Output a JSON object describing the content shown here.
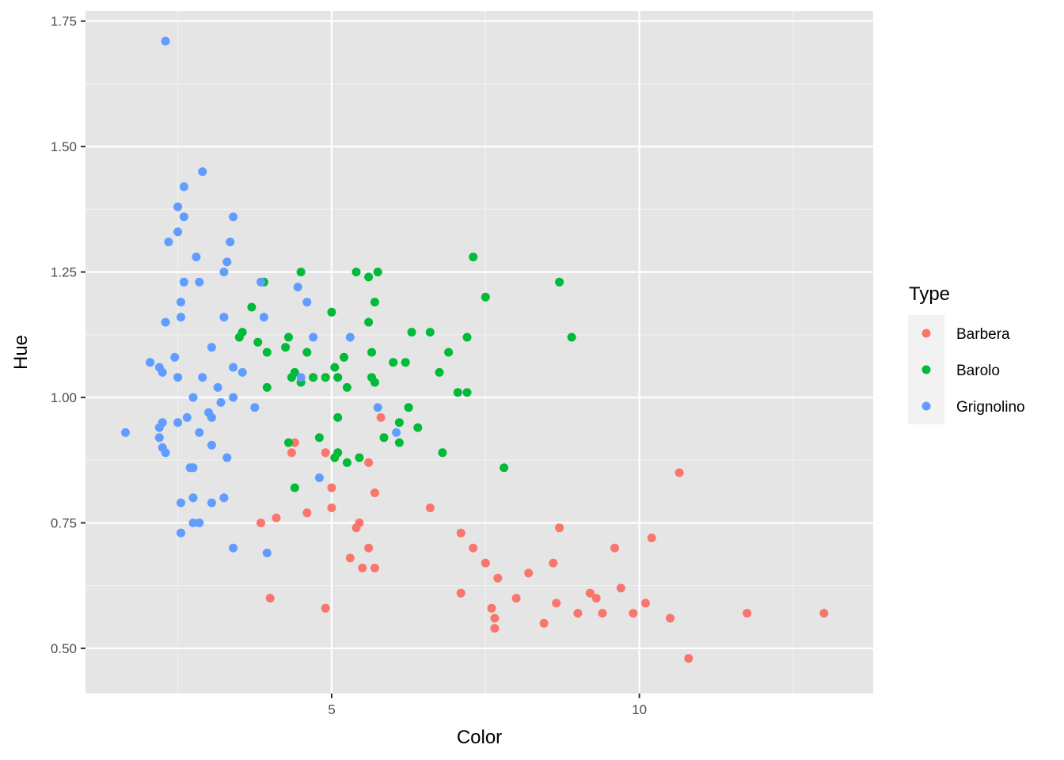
{
  "colors": {
    "panel": "#e5e5e5",
    "grid_major": "#ffffff",
    "tick": "#333333",
    "Barbera": "#F8766D",
    "Barolo": "#00BA38",
    "Grignolino": "#619CFF"
  },
  "chart_data": {
    "type": "scatter",
    "xlabel": "Color",
    "ylabel": "Hue",
    "xlim": [
      1.0,
      13.8
    ],
    "ylim": [
      0.41,
      1.77
    ],
    "x_ticks": [
      5,
      10
    ],
    "x_tick_labels": [
      "5",
      "10"
    ],
    "y_ticks": [
      0.5,
      0.75,
      1.0,
      1.25,
      1.5,
      1.75
    ],
    "y_tick_labels": [
      "0.50",
      "0.75",
      "1.00",
      "1.25",
      "1.50",
      "1.75"
    ],
    "grid": true,
    "legend": {
      "title": "Type",
      "position": "right"
    },
    "series": [
      {
        "name": "Barbera",
        "points": [
          [
            5.8,
            0.96
          ],
          [
            4.4,
            0.91
          ],
          [
            4.35,
            0.89
          ],
          [
            4.9,
            0.89
          ],
          [
            5,
            0.82
          ],
          [
            5.6,
            0.87
          ],
          [
            5.7,
            0.81
          ],
          [
            6.6,
            0.78
          ],
          [
            5,
            0.78
          ],
          [
            4.6,
            0.77
          ],
          [
            4.1,
            0.76
          ],
          [
            3.85,
            0.75
          ],
          [
            5.45,
            0.75
          ],
          [
            5.4,
            0.74
          ],
          [
            8.7,
            0.74
          ],
          [
            7.1,
            0.73
          ],
          [
            10.2,
            0.72
          ],
          [
            7.3,
            0.7
          ],
          [
            5.6,
            0.7
          ],
          [
            9.6,
            0.7
          ],
          [
            5.3,
            0.68
          ],
          [
            7.5,
            0.67
          ],
          [
            8.6,
            0.67
          ],
          [
            5.5,
            0.66
          ],
          [
            5.7,
            0.66
          ],
          [
            8.2,
            0.65
          ],
          [
            7.7,
            0.64
          ],
          [
            9.7,
            0.62
          ],
          [
            7.1,
            0.61
          ],
          [
            9.2,
            0.61
          ],
          [
            4,
            0.6
          ],
          [
            8,
            0.6
          ],
          [
            9.3,
            0.6
          ],
          [
            8.65,
            0.59
          ],
          [
            10.1,
            0.59
          ],
          [
            4.9,
            0.58
          ],
          [
            7.6,
            0.58
          ],
          [
            9,
            0.57
          ],
          [
            9.4,
            0.57
          ],
          [
            9.9,
            0.57
          ],
          [
            11.75,
            0.57
          ],
          [
            13,
            0.57
          ],
          [
            7.65,
            0.56
          ],
          [
            10.5,
            0.56
          ],
          [
            7.65,
            0.54
          ],
          [
            8.45,
            0.55
          ],
          [
            10.65,
            0.85
          ],
          [
            10.8,
            0.48
          ]
        ]
      },
      {
        "name": "Barolo",
        "points": [
          [
            7.3,
            1.28
          ],
          [
            5.4,
            1.25
          ],
          [
            5.75,
            1.25
          ],
          [
            4.5,
            1.25
          ],
          [
            5.6,
            1.24
          ],
          [
            8.7,
            1.23
          ],
          [
            3.9,
            1.23
          ],
          [
            7.5,
            1.2
          ],
          [
            5.7,
            1.19
          ],
          [
            3.7,
            1.18
          ],
          [
            5,
            1.17
          ],
          [
            3.55,
            1.13
          ],
          [
            6.3,
            1.13
          ],
          [
            6.6,
            1.13
          ],
          [
            3.5,
            1.12
          ],
          [
            4.3,
            1.12
          ],
          [
            7.2,
            1.12
          ],
          [
            8.9,
            1.12
          ],
          [
            3.8,
            1.11
          ],
          [
            5.6,
            1.15
          ],
          [
            4.25,
            1.1
          ],
          [
            3.95,
            1.09
          ],
          [
            4.6,
            1.09
          ],
          [
            5.65,
            1.09
          ],
          [
            6.9,
            1.09
          ],
          [
            5.2,
            1.08
          ],
          [
            6,
            1.07
          ],
          [
            6.2,
            1.07
          ],
          [
            5.05,
            1.06
          ],
          [
            4.4,
            1.05
          ],
          [
            6.75,
            1.05
          ],
          [
            4.35,
            1.04
          ],
          [
            4.7,
            1.04
          ],
          [
            4.9,
            1.04
          ],
          [
            5.1,
            1.04
          ],
          [
            5.65,
            1.04
          ],
          [
            4.5,
            1.03
          ],
          [
            5.7,
            1.03
          ],
          [
            3.95,
            1.02
          ],
          [
            5.25,
            1.02
          ],
          [
            7.05,
            1.01
          ],
          [
            7.2,
            1.01
          ],
          [
            6.25,
            0.98
          ],
          [
            5.1,
            0.96
          ],
          [
            6.1,
            0.95
          ],
          [
            6.4,
            0.94
          ],
          [
            4.8,
            0.92
          ],
          [
            5.85,
            0.92
          ],
          [
            4.3,
            0.91
          ],
          [
            6.1,
            0.91
          ],
          [
            5.1,
            0.89
          ],
          [
            6.8,
            0.89
          ],
          [
            5.05,
            0.88
          ],
          [
            5.45,
            0.88
          ],
          [
            5.25,
            0.87
          ],
          [
            7.8,
            0.86
          ],
          [
            4.4,
            0.82
          ]
        ]
      },
      {
        "name": "Grignolino",
        "points": [
          [
            2.3,
            1.71
          ],
          [
            2.9,
            1.45
          ],
          [
            2.6,
            1.42
          ],
          [
            2.5,
            1.38
          ],
          [
            2.6,
            1.36
          ],
          [
            3.4,
            1.36
          ],
          [
            2.5,
            1.33
          ],
          [
            2.35,
            1.31
          ],
          [
            3.35,
            1.31
          ],
          [
            2.8,
            1.28
          ],
          [
            3.3,
            1.27
          ],
          [
            3.25,
            1.25
          ],
          [
            2.6,
            1.23
          ],
          [
            2.85,
            1.23
          ],
          [
            3.85,
            1.23
          ],
          [
            4.45,
            1.22
          ],
          [
            2.55,
            1.19
          ],
          [
            4.6,
            1.19
          ],
          [
            2.55,
            1.16
          ],
          [
            3.25,
            1.16
          ],
          [
            3.9,
            1.16
          ],
          [
            2.3,
            1.15
          ],
          [
            4.7,
            1.12
          ],
          [
            5.3,
            1.12
          ],
          [
            3.05,
            1.1
          ],
          [
            2.45,
            1.08
          ],
          [
            2.05,
            1.07
          ],
          [
            2.2,
            1.06
          ],
          [
            3.4,
            1.06
          ],
          [
            2.25,
            1.05
          ],
          [
            3.55,
            1.05
          ],
          [
            2.5,
            1.04
          ],
          [
            2.9,
            1.04
          ],
          [
            4.5,
            1.04
          ],
          [
            3.15,
            1.02
          ],
          [
            2.75,
            1.0
          ],
          [
            3.4,
            1.0
          ],
          [
            3.2,
            0.99
          ],
          [
            3.75,
            0.98
          ],
          [
            5.75,
            0.98
          ],
          [
            3,
            0.97
          ],
          [
            2.65,
            0.96
          ],
          [
            3.05,
            0.96
          ],
          [
            2.25,
            0.95
          ],
          [
            2.5,
            0.95
          ],
          [
            2.2,
            0.94
          ],
          [
            1.65,
            0.93
          ],
          [
            2.85,
            0.93
          ],
          [
            6.05,
            0.93
          ],
          [
            2.2,
            0.92
          ],
          [
            3.05,
            0.905
          ],
          [
            2.25,
            0.9
          ],
          [
            2.3,
            0.89
          ],
          [
            3.3,
            0.88
          ],
          [
            2.7,
            0.86
          ],
          [
            2.75,
            0.86
          ],
          [
            4.8,
            0.84
          ],
          [
            2.75,
            0.8
          ],
          [
            3.25,
            0.8
          ],
          [
            2.55,
            0.79
          ],
          [
            3.05,
            0.79
          ],
          [
            2.75,
            0.75
          ],
          [
            2.85,
            0.75
          ],
          [
            2.55,
            0.73
          ],
          [
            3.4,
            0.7
          ],
          [
            3.95,
            0.69
          ]
        ]
      }
    ]
  }
}
